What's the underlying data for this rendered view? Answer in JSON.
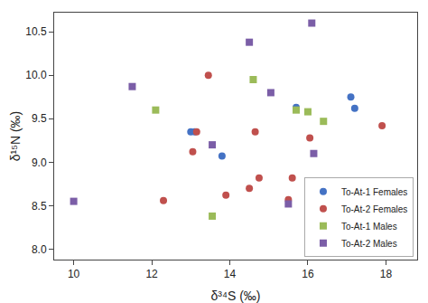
{
  "chart_data": {
    "type": "scatter",
    "xlabel": "δ³⁴S (‰)",
    "ylabel": "δ¹⁵N (‰)",
    "series": [
      {
        "name": "To-At-1 Females",
        "color": "#4472c4",
        "marker": "circle",
        "x": [
          13.0,
          13.1,
          13.8,
          15.7,
          17.1,
          17.2
        ],
        "values": [
          9.35,
          9.35,
          9.07,
          9.63,
          9.75,
          9.62
        ]
      },
      {
        "name": "To-At-2 Females",
        "color": "#c0504d",
        "marker": "circle",
        "x": [
          12.3,
          13.05,
          13.15,
          13.45,
          13.9,
          14.5,
          14.65,
          14.75,
          15.5,
          15.6,
          16.05,
          17.9
        ],
        "values": [
          8.56,
          9.12,
          9.35,
          10.0,
          8.62,
          8.7,
          9.35,
          8.82,
          8.57,
          8.82,
          9.28,
          9.42
        ]
      },
      {
        "name": "To-At-1 Males",
        "color": "#9bbb59",
        "marker": "square",
        "x": [
          12.1,
          13.55,
          14.6,
          15.7,
          16.0,
          16.4
        ],
        "values": [
          9.6,
          8.38,
          9.95,
          9.6,
          9.58,
          9.47
        ]
      },
      {
        "name": "To-At-2 Males",
        "color": "#7b5ea7",
        "marker": "square",
        "x": [
          10.0,
          11.5,
          13.55,
          14.5,
          15.05,
          15.5,
          16.1,
          16.15
        ],
        "values": [
          8.55,
          9.87,
          9.2,
          10.38,
          9.8,
          8.52,
          10.6,
          9.1
        ]
      }
    ],
    "xlim": [
      9.5,
      18.8
    ],
    "ylim": [
      7.88,
      10.72
    ],
    "xticks": [
      10,
      12,
      14,
      16,
      18
    ],
    "yticks": [
      {
        "value": 8.0,
        "label": "8.0"
      },
      8.5,
      {
        "value": 9.0,
        "label": "9.0"
      },
      9.5,
      {
        "value": 10.0,
        "label": "10.0"
      },
      10.5
    ],
    "grid": false,
    "legend": "lower right"
  }
}
